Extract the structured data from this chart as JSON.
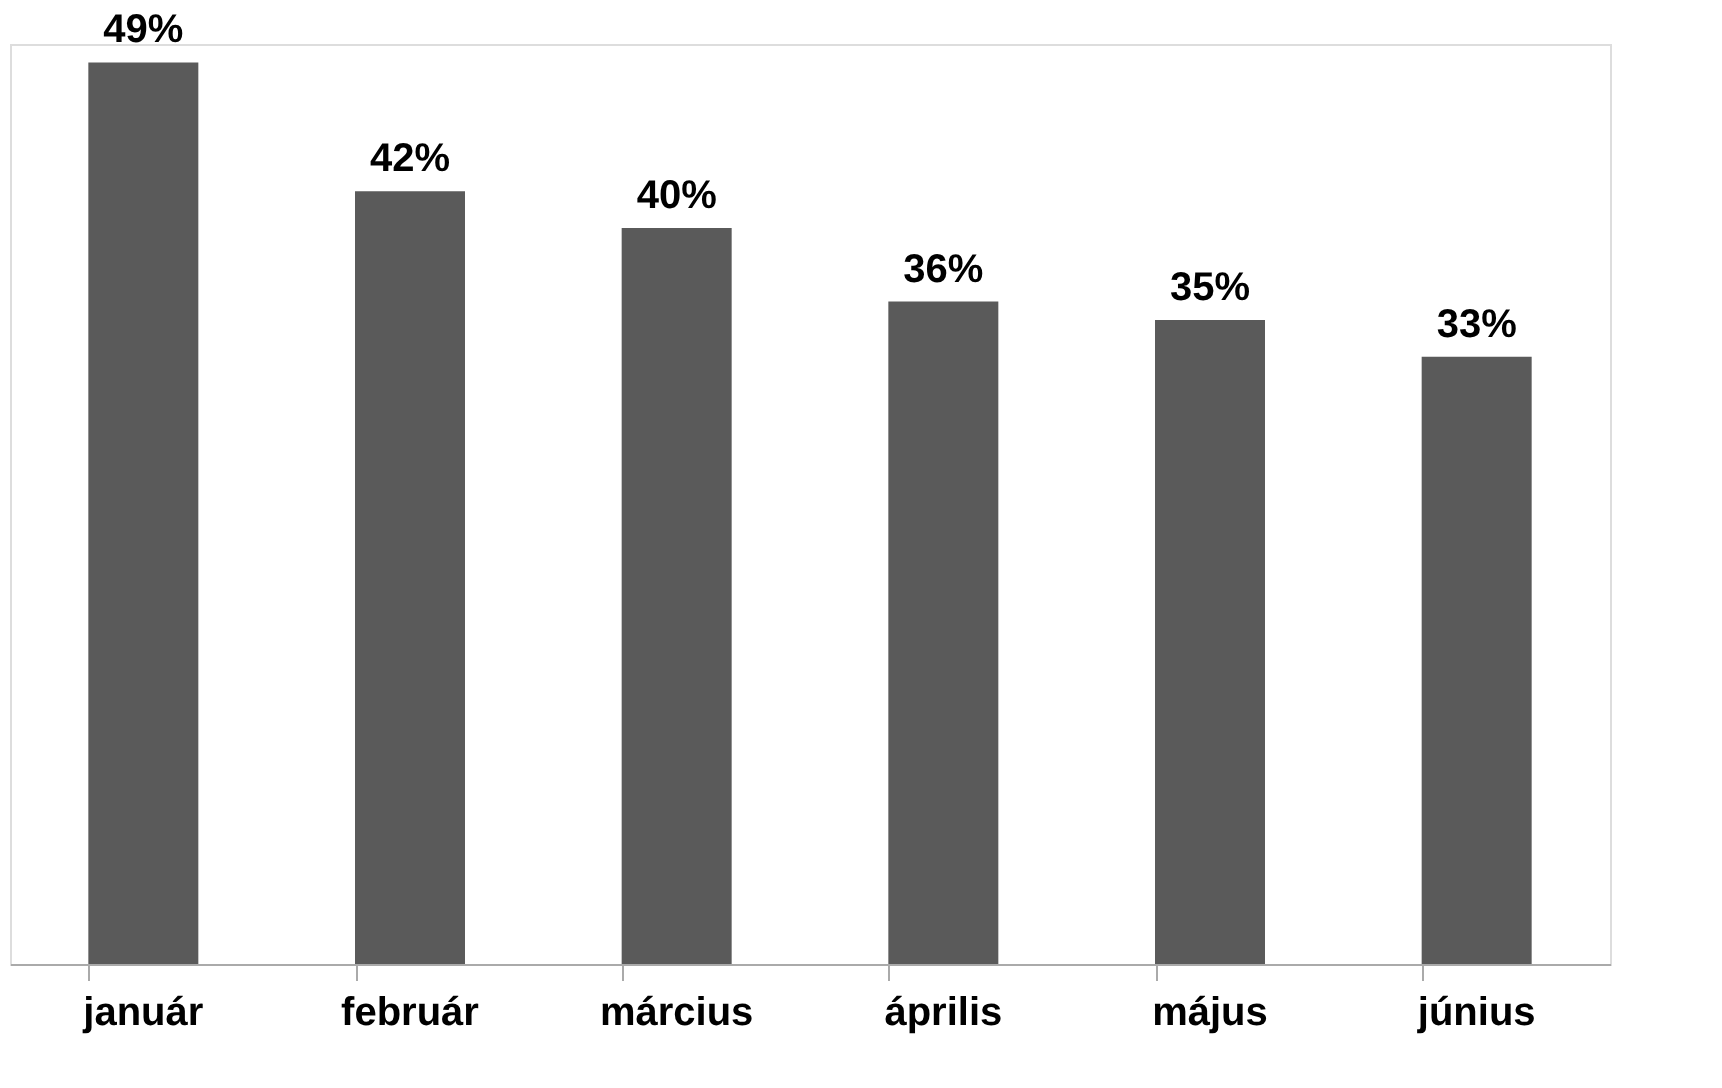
{
  "chart_data": {
    "type": "bar",
    "categories": [
      "január",
      "február",
      "március",
      "április",
      "május",
      "június"
    ],
    "values": [
      49,
      42,
      40,
      36,
      35,
      33
    ],
    "value_labels": [
      "49%",
      "42%",
      "40%",
      "36%",
      "35%",
      "33%"
    ],
    "color": "#5a5a5a",
    "grid": false
  }
}
